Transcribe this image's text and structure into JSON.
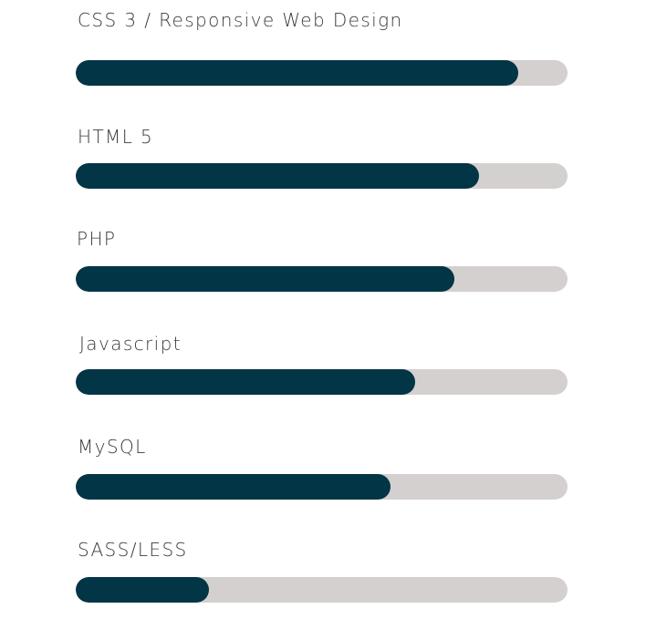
{
  "colors": {
    "fill": "#023546",
    "track": "#d5d0d0",
    "label": "#3a3a3a",
    "background": "#ffffff"
  },
  "skills": [
    {
      "label": "CSS 3 / Responsive Web Design",
      "progress": 0.9
    },
    {
      "label": "HTML 5",
      "progress": 0.82
    },
    {
      "label": "PHP",
      "progress": 0.77
    },
    {
      "label": "Javascript",
      "progress": 0.69
    },
    {
      "label": "MySQL",
      "progress": 0.64
    },
    {
      "label": "SASS/LESS",
      "progress": 0.27
    }
  ]
}
